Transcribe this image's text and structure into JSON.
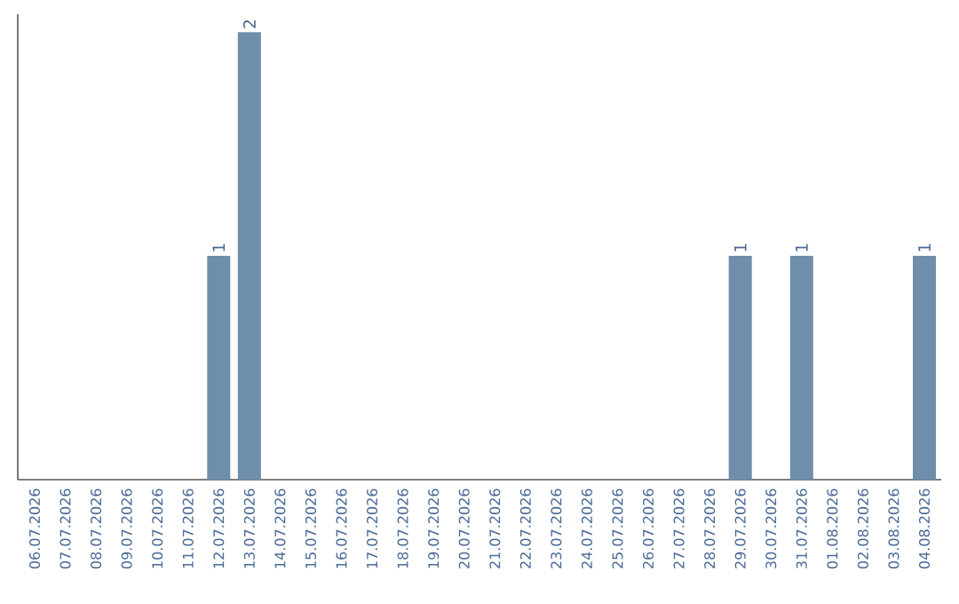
{
  "chart_data": {
    "type": "bar",
    "categories": [
      "06.07.2026",
      "07.07.2026",
      "08.07.2026",
      "09.07.2026",
      "10.07.2026",
      "11.07.2026",
      "12.07.2026",
      "13.07.2026",
      "14.07.2026",
      "15.07.2026",
      "16.07.2026",
      "17.07.2026",
      "18.07.2026",
      "19.07.2026",
      "20.07.2026",
      "21.07.2026",
      "22.07.2026",
      "23.07.2026",
      "24.07.2026",
      "25.07.2026",
      "26.07.2026",
      "27.07.2026",
      "28.07.2026",
      "29.07.2026",
      "30.07.2026",
      "31.07.2026",
      "01.08.2026",
      "02.08.2026",
      "03.08.2026",
      "04.08.2026"
    ],
    "values": [
      0,
      0,
      0,
      0,
      0,
      0,
      1,
      2,
      0,
      0,
      0,
      0,
      0,
      0,
      0,
      0,
      0,
      0,
      0,
      0,
      0,
      0,
      0,
      1,
      0,
      1,
      0,
      0,
      0,
      1
    ],
    "value_labels": [
      null,
      null,
      null,
      null,
      null,
      null,
      "1",
      "2",
      null,
      null,
      null,
      null,
      null,
      null,
      null,
      null,
      null,
      null,
      null,
      null,
      null,
      null,
      null,
      "1",
      null,
      "1",
      null,
      null,
      null,
      "1"
    ],
    "color": "#6e8eab"
  }
}
